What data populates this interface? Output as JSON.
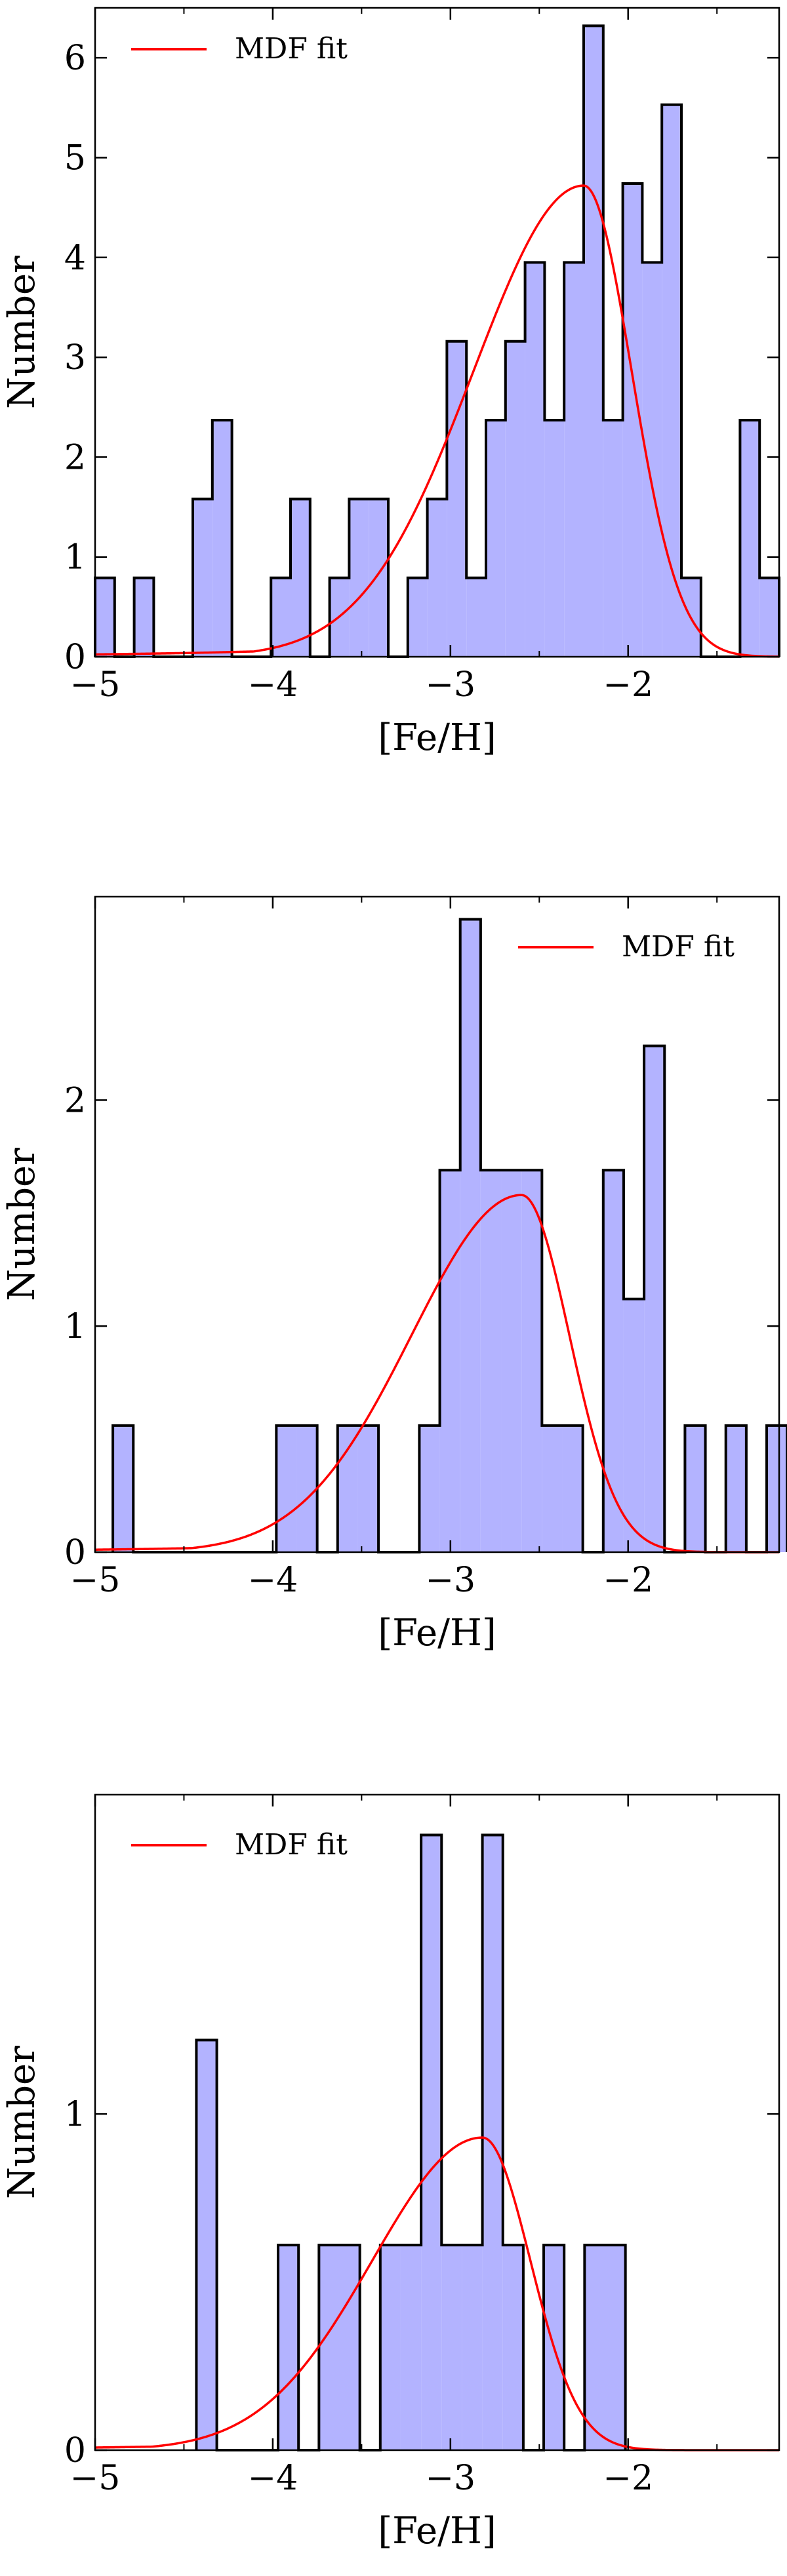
{
  "chart_data": [
    {
      "type": "histogram",
      "title": "",
      "xlabel": "[Fe/H]",
      "ylabel": "Number",
      "xlim": [
        -5.0,
        -1.15
      ],
      "ylim": [
        0,
        6.5
      ],
      "xticks": [
        -5,
        -4,
        -3,
        -2
      ],
      "xtick_labels": [
        "−5",
        "−4",
        "−3",
        "−2"
      ],
      "yticks": [
        0,
        1,
        2,
        3,
        4,
        5,
        6
      ],
      "ytick_labels": [
        "0",
        "1",
        "2",
        "3",
        "4",
        "5",
        "6"
      ],
      "bin_width": 0.11,
      "bin_start": -5.0,
      "bin_values": [
        0.79,
        0,
        0.79,
        0,
        0,
        1.58,
        2.37,
        0,
        0,
        0.79,
        1.58,
        0,
        0.79,
        1.58,
        1.58,
        0,
        0.79,
        1.58,
        3.16,
        0.79,
        2.37,
        3.16,
        3.95,
        2.37,
        3.95,
        6.32,
        2.37,
        4.74,
        3.95,
        5.53,
        0.79,
        0,
        0,
        2.37,
        0.79
      ],
      "hist_fill": "#b3b3ff",
      "hist_edge": "#000000",
      "series": [
        {
          "name": "MDF fit",
          "color": "#ff0000",
          "peak_x": -2.25,
          "peak_y": 4.72
        }
      ],
      "legend_position": "top-left",
      "grid": false
    },
    {
      "type": "histogram",
      "title": "",
      "xlabel": "[Fe/H]",
      "ylabel": "Number",
      "xlim": [
        -5.0,
        -1.15
      ],
      "ylim": [
        0,
        2.9
      ],
      "xticks": [
        -5,
        -4,
        -3,
        -2
      ],
      "xtick_labels": [
        "−5",
        "−4",
        "−3",
        "−2"
      ],
      "yticks": [
        0,
        1,
        2
      ],
      "ytick_labels": [
        "0",
        "1",
        "2"
      ],
      "bin_width": 0.115,
      "bin_start": -4.9,
      "bin_values": [
        0.56,
        0,
        0,
        0,
        0,
        0,
        0,
        0,
        0.56,
        0.56,
        0,
        0.56,
        0.56,
        0,
        0,
        0.56,
        1.69,
        2.8,
        1.69,
        1.69,
        1.69,
        0.56,
        0.56,
        0,
        1.69,
        1.12,
        2.24,
        0,
        0.56,
        0,
        0.56,
        0,
        0.56
      ],
      "hist_fill": "#b3b3ff",
      "hist_edge": "#000000",
      "series": [
        {
          "name": "MDF fit",
          "color": "#ff0000",
          "peak_x": -2.6,
          "peak_y": 1.58
        }
      ],
      "legend_position": "top-right",
      "grid": false
    },
    {
      "type": "histogram",
      "title": "",
      "xlabel": "[Fe/H]",
      "ylabel": "Number",
      "xlim": [
        -5.0,
        -1.15
      ],
      "ylim": [
        0,
        1.95
      ],
      "xticks": [
        -5,
        -4,
        -3,
        -2
      ],
      "xtick_labels": [
        "−5",
        "−4",
        "−3",
        "−2"
      ],
      "yticks": [
        0,
        1
      ],
      "ytick_labels": [
        "0",
        "1"
      ],
      "bin_width": 0.115,
      "bin_start": -4.43,
      "bin_values": [
        1.22,
        0,
        0,
        0,
        0.61,
        0,
        0.61,
        0.61,
        0,
        0.61,
        0.61,
        1.83,
        0.61,
        0.61,
        1.83,
        0.61,
        0,
        0.61,
        0,
        0.61,
        0.61
      ],
      "hist_fill": "#b3b3ff",
      "hist_edge": "#000000",
      "series": [
        {
          "name": "MDF fit",
          "color": "#ff0000",
          "peak_x": -2.82,
          "peak_y": 0.93
        }
      ],
      "legend_position": "top-left",
      "grid": false
    }
  ]
}
